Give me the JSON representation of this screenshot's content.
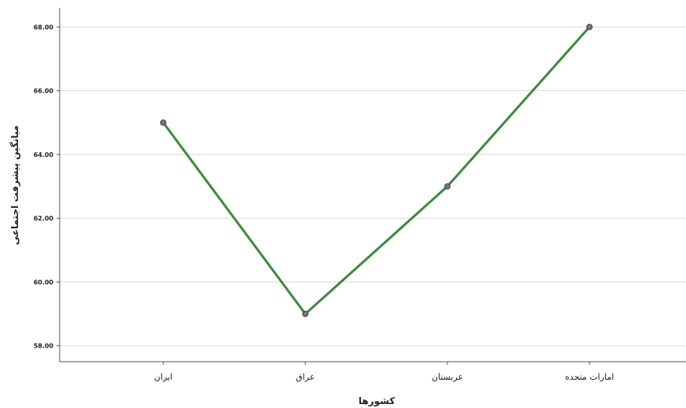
{
  "chart_data": {
    "type": "line",
    "categories": [
      "ایران",
      "عراق",
      "عربستان",
      "امارات متحده"
    ],
    "values": [
      65,
      59,
      63,
      68
    ],
    "xlabel": "کشورها",
    "ylabel": "میانگین پیشرفت اجتماعی",
    "ylim": [
      57.5,
      68.6
    ],
    "yticks": [
      "58.00",
      "60.00",
      "62.00",
      "64.00",
      "66.00",
      "68.00"
    ],
    "ytick_values": [
      58,
      60,
      62,
      64,
      66,
      68
    ],
    "grid": true,
    "line_color": "#3a8a3a",
    "marker_color": "#777777"
  }
}
